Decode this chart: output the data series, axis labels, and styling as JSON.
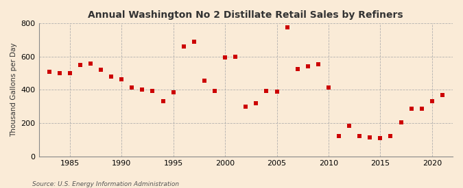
{
  "title": "Annual Washington No 2 Distillate Retail Sales by Refiners",
  "ylabel": "Thousand Gallons per Day",
  "source": "Source: U.S. Energy Information Administration",
  "background_color": "#faebd7",
  "plot_background_color": "#faebd7",
  "marker_color": "#cc0000",
  "marker": "s",
  "marker_size": 16,
  "ylim": [
    0,
    800
  ],
  "yticks": [
    0,
    200,
    400,
    600,
    800
  ],
  "xlim": [
    1982,
    2022
  ],
  "xticks": [
    1985,
    1990,
    1995,
    2000,
    2005,
    2010,
    2015,
    2020
  ],
  "years": [
    1983,
    1984,
    1985,
    1986,
    1987,
    1988,
    1989,
    1990,
    1991,
    1992,
    1993,
    1994,
    1995,
    1996,
    1997,
    1998,
    1999,
    2000,
    2001,
    2002,
    2003,
    2004,
    2005,
    2006,
    2007,
    2008,
    2009,
    2010,
    2011,
    2012,
    2013,
    2014,
    2015,
    2016,
    2017,
    2018,
    2019,
    2020,
    2021
  ],
  "values": [
    510,
    500,
    500,
    550,
    560,
    520,
    480,
    465,
    415,
    400,
    395,
    330,
    385,
    660,
    690,
    455,
    395,
    595,
    600,
    300,
    320,
    395,
    390,
    775,
    525,
    540,
    555,
    415,
    120,
    185,
    120,
    115,
    108,
    120,
    205,
    285,
    285,
    330,
    370
  ]
}
